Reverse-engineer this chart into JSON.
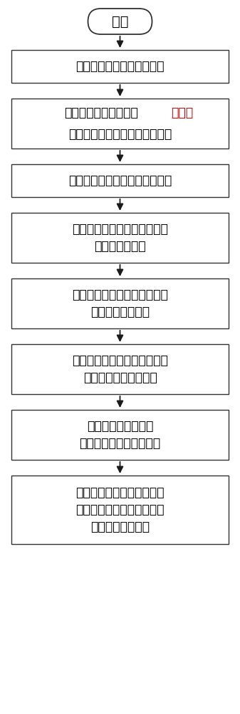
{
  "bg_color": "#ffffff",
  "text_color": "#000000",
  "box_edge_color": "#333333",
  "arrow_color": "#1a1a1a",
  "start_label": "开始",
  "boxes": [
    {
      "text": "制作印刷电路板、器件焊接",
      "lines": 1,
      "highlight": false
    },
    {
      "text_parts": [
        {
          "text": "对矢量网络分析仪进行",
          "color": "#000000"
        },
        {
          "text": "一次校",
          "color": "#cc0000"
        },
        {
          "text": "\n准，并对电气特性文件进行修订",
          "color": "#000000"
        }
      ],
      "lines": 2,
      "highlight": true
    },
    {
      "text": "对矢量网络分析仪进行二次校准",
      "lines": 1,
      "highlight": false
    },
    {
      "text": "测量电容器测试夹具的二端口\n散射参数并保存",
      "lines": 2,
      "highlight": false
    },
    {
      "text": "将散射参数中的反向传递系数\n转换为总阻抗参数",
      "lines": 2,
      "highlight": false
    },
    {
      "text": "对总阻抗参数去除安装感抗，\n得到电容器自身的阻抗",
      "lines": 2,
      "highlight": false
    },
    {
      "text": "通过矢量拟合法得到\n电容器阻抗的高阶表达式",
      "lines": 2,
      "highlight": false
    },
    {
      "text": "将仿真得到的电容器阻抗与\n厂商提供的阻抗进行对比，\n验证仿真的精确度",
      "lines": 3,
      "highlight": false
    }
  ],
  "font_size_box": 12.5,
  "font_size_start": 14
}
